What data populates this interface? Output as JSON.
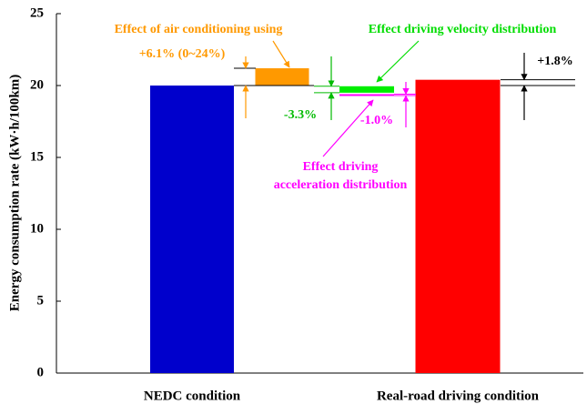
{
  "chart_data": {
    "type": "floating-bar",
    "y_label": "Energy consumption rate (kW·h/100km)",
    "ylim": [
      0,
      25
    ],
    "yticks": [
      0,
      5,
      10,
      15,
      20,
      25
    ],
    "categories": [
      "NEDC condition",
      null,
      null,
      null,
      "Real-road driving condition"
    ],
    "bars": [
      {
        "color": "#0000cc",
        "start": 0,
        "end": 20
      },
      {
        "color": "#ff9900",
        "start": 20,
        "end": 21.2
      },
      {
        "color": "#00ee00",
        "start": 19.5,
        "end": 19.95
      },
      {
        "color": "#ff00ff",
        "start": 19.3,
        "end": 19.4
      },
      {
        "color": "#ff0000",
        "start": 0,
        "end": 20.4
      }
    ],
    "annotations": [
      {
        "text": "Effect of air conditioning using",
        "color": "#ff9900"
      },
      {
        "text": "+6.1% (0~24%)",
        "color": "#ff9900"
      },
      {
        "text": "Effect driving velocity distribution",
        "color": "#00dd00"
      },
      {
        "text": "-3.3%",
        "color": "#00bb00"
      },
      {
        "text": "-1.0%",
        "color": "#ff00ff"
      },
      {
        "text": "Effect driving",
        "color": "#ff00ff"
      },
      {
        "text": "acceleration distribution",
        "color": "#ff00ff"
      },
      {
        "text": "+1.8%",
        "color": "#000000"
      }
    ]
  }
}
